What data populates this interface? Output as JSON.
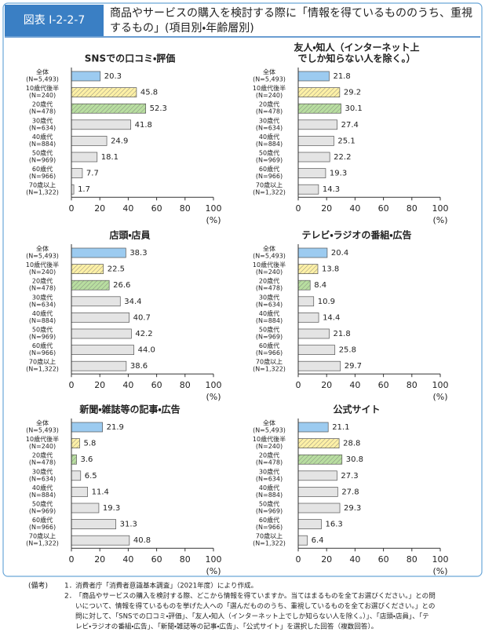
{
  "header": {
    "label": "図表 I-2-2-7",
    "title": [
      "商品やサービスの購入を検討する際に「情報を得ているもののうち、重視",
      "するもの」(項目別・年齢層別)"
    ]
  },
  "chart_data": [
    {
      "type": "bar",
      "orientation": "horizontal",
      "title": "SNSでの口コミ・評価",
      "categories": [
        "全体",
        "10歳代後半",
        "20歳代",
        "30歳代",
        "40歳代",
        "50歳代",
        "60歳代",
        "70歳以上"
      ],
      "category_notes": [
        "(N=5,493)",
        "(N=240)",
        "(N=478)",
        "(N=634)",
        "(N=884)",
        "(N=969)",
        "(N=966)",
        "(N=1,322)"
      ],
      "values": [
        20.3,
        45.8,
        52.3,
        41.8,
        24.9,
        18.1,
        7.7,
        1.7
      ],
      "colors": [
        "#9ccbf0",
        "#fdf0a6",
        "#b8dea0",
        "#e4e4e4",
        "#e4e4e4",
        "#e4e4e4",
        "#e4e4e4",
        "#e4e4e4"
      ],
      "hatched": [
        false,
        true,
        true,
        false,
        false,
        false,
        false,
        false
      ],
      "xlim": [
        0,
        100
      ],
      "xticks": [
        0,
        20,
        40,
        60,
        80,
        100
      ],
      "xlabel": "(%)"
    },
    {
      "type": "bar",
      "orientation": "horizontal",
      "title": [
        "友人・知人（インターネット上",
        "でしか知らない人を除く。）"
      ],
      "categories": [
        "全体",
        "10歳代後半",
        "20歳代",
        "30歳代",
        "40歳代",
        "50歳代",
        "60歳代",
        "70歳以上"
      ],
      "category_notes": [
        "(N=5,493)",
        "(N=240)",
        "(N=478)",
        "(N=634)",
        "(N=884)",
        "(N=969)",
        "(N=966)",
        "(N=1,322)"
      ],
      "values": [
        21.8,
        29.2,
        30.1,
        27.4,
        25.1,
        22.2,
        19.3,
        14.3
      ],
      "colors": [
        "#9ccbf0",
        "#fdf0a6",
        "#b8dea0",
        "#e4e4e4",
        "#e4e4e4",
        "#e4e4e4",
        "#e4e4e4",
        "#e4e4e4"
      ],
      "hatched": [
        false,
        true,
        true,
        false,
        false,
        false,
        false,
        false
      ],
      "xlim": [
        0,
        100
      ],
      "xticks": [
        0,
        20,
        40,
        60,
        80,
        100
      ],
      "xlabel": "(%)"
    },
    {
      "type": "bar",
      "orientation": "horizontal",
      "title": "店頭・店員",
      "categories": [
        "全体",
        "10歳代後半",
        "20歳代",
        "30歳代",
        "40歳代",
        "50歳代",
        "60歳代",
        "70歳以上"
      ],
      "category_notes": [
        "(N=5,493)",
        "(N=240)",
        "(N=478)",
        "(N=634)",
        "(N=884)",
        "(N=969)",
        "(N=966)",
        "(N=1,322)"
      ],
      "values": [
        38.3,
        22.5,
        26.6,
        34.4,
        40.7,
        42.2,
        44.0,
        38.6
      ],
      "value_labels": [
        "38.3",
        "22.5",
        "26.6",
        "34.4",
        "40.7",
        "42.2",
        "44.0",
        "38.6"
      ],
      "colors": [
        "#9ccbf0",
        "#fdf0a6",
        "#b8dea0",
        "#e4e4e4",
        "#e4e4e4",
        "#e4e4e4",
        "#e4e4e4",
        "#e4e4e4"
      ],
      "hatched": [
        false,
        true,
        true,
        false,
        false,
        false,
        false,
        false
      ],
      "xlim": [
        0,
        100
      ],
      "xticks": [
        0,
        20,
        40,
        60,
        80,
        100
      ],
      "xlabel": "(%)"
    },
    {
      "type": "bar",
      "orientation": "horizontal",
      "title": "テレビ・ラジオの番組・広告",
      "categories": [
        "全体",
        "10歳代後半",
        "20歳代",
        "30歳代",
        "40歳代",
        "50歳代",
        "60歳代",
        "70歳以上"
      ],
      "category_notes": [
        "(N=5,493)",
        "(N=240)",
        "(N=478)",
        "(N=634)",
        "(N=884)",
        "(N=969)",
        "(N=966)",
        "(N=1,322)"
      ],
      "values": [
        20.4,
        13.8,
        8.4,
        10.9,
        14.4,
        21.8,
        25.8,
        29.7
      ],
      "colors": [
        "#9ccbf0",
        "#fdf0a6",
        "#b8dea0",
        "#e4e4e4",
        "#e4e4e4",
        "#e4e4e4",
        "#e4e4e4",
        "#e4e4e4"
      ],
      "hatched": [
        false,
        true,
        true,
        false,
        false,
        false,
        false,
        false
      ],
      "xlim": [
        0,
        100
      ],
      "xticks": [
        0,
        20,
        40,
        60,
        80,
        100
      ],
      "xlabel": "(%)"
    },
    {
      "type": "bar",
      "orientation": "horizontal",
      "title": "新聞・雑誌等の記事・広告",
      "categories": [
        "全体",
        "10歳代後半",
        "20歳代",
        "30歳代",
        "40歳代",
        "50歳代",
        "60歳代",
        "70歳以上"
      ],
      "category_notes": [
        "(N=5,493)",
        "(N=240)",
        "(N=478)",
        "(N=634)",
        "(N=884)",
        "(N=969)",
        "(N=966)",
        "(N=1,322)"
      ],
      "values": [
        21.9,
        5.8,
        3.6,
        6.5,
        11.4,
        19.3,
        31.3,
        40.8
      ],
      "colors": [
        "#9ccbf0",
        "#fdf0a6",
        "#b8dea0",
        "#e4e4e4",
        "#e4e4e4",
        "#e4e4e4",
        "#e4e4e4",
        "#e4e4e4"
      ],
      "hatched": [
        false,
        true,
        true,
        false,
        false,
        false,
        false,
        false
      ],
      "xlim": [
        0,
        100
      ],
      "xticks": [
        0,
        20,
        40,
        60,
        80,
        100
      ],
      "xlabel": "(%)"
    },
    {
      "type": "bar",
      "orientation": "horizontal",
      "title": "公式サイト",
      "categories": [
        "全体",
        "10歳代後半",
        "20歳代",
        "30歳代",
        "40歳代",
        "50歳代",
        "60歳代",
        "70歳以上"
      ],
      "category_notes": [
        "(N=5,493)",
        "(N=240)",
        "(N=478)",
        "(N=634)",
        "(N=884)",
        "(N=969)",
        "(N=966)",
        "(N=1,322)"
      ],
      "values": [
        21.1,
        28.8,
        30.8,
        27.3,
        27.8,
        29.3,
        16.3,
        6.4
      ],
      "colors": [
        "#9ccbf0",
        "#fdf0a6",
        "#b8dea0",
        "#e4e4e4",
        "#e4e4e4",
        "#e4e4e4",
        "#e4e4e4",
        "#e4e4e4"
      ],
      "hatched": [
        false,
        true,
        true,
        false,
        false,
        false,
        false,
        false
      ],
      "xlim": [
        0,
        100
      ],
      "xticks": [
        0,
        20,
        40,
        60,
        80,
        100
      ],
      "xlabel": "(%)"
    }
  ],
  "notes": {
    "heading": "(備考)",
    "items": [
      {
        "number": "1．",
        "lines": [
          "消費者庁「消費者意識基本調査」（2021年度）により作成。"
        ]
      },
      {
        "number": "2．",
        "lines": [
          "「商品やサービスの購入を検討する際、どこから情報を得ていますか。当てはまるものを全てお選びください。」との問",
          "いについて、情報を得ているものを挙げた人への「選んだもののうち、重視しているものを全てお選びください。」との",
          "問に対して、「SNSでの口コミ・評価」、「友人・知人（インターネット上でしか知らない人を除く。）」、「店頭・店員」、「テ",
          "レビ・ラジオの番組・広告」、「新聞・雑誌等の記事・広告」、「公式サイト」を選択した回答（複数回答）。"
        ]
      }
    ]
  }
}
